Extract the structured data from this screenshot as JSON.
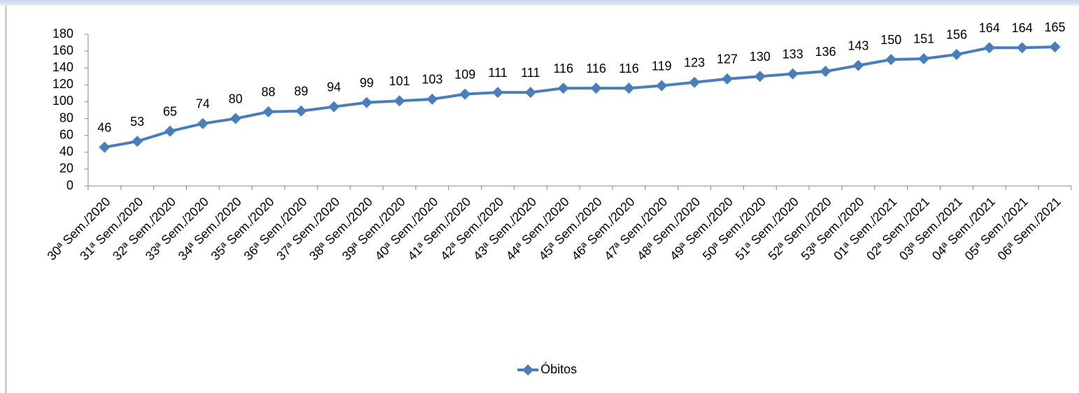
{
  "chart_data": {
    "type": "line",
    "categories": [
      "30ª Sem./2020",
      "31ª Sem./2020",
      "32ª Sem./2020",
      "33ª Sem./2020",
      "34ª Sem./2020",
      "35ª Sem./2020",
      "36ª Sem./2020",
      "37ª Sem./2020",
      "38ª Sem./2020",
      "39ª Sem./2020",
      "40ª Sem./2020",
      "41ª Sem./2020",
      "42ª Sem./2020",
      "43ª Sem./2020",
      "44ª Sem./2020",
      "45ª Sem./2020",
      "46ª Sem./2020",
      "47ª Sem./2020",
      "48ª Sem./2020",
      "49ª Sem./2020",
      "50ª Sem./2020",
      "51ª Sem./2020",
      "52ª Sem./2020",
      "53ª Sem./2020",
      "01ª Sem./2021",
      "02ª Sem./2021",
      "03ª Sem./2021",
      "04ª Sem./2021",
      "05ª Sem./2021",
      "06ª Sem./2021"
    ],
    "series": [
      {
        "name": "Óbitos",
        "color": "#4a7ebb",
        "values": [
          46,
          53,
          65,
          74,
          80,
          88,
          89,
          94,
          99,
          101,
          103,
          109,
          111,
          111,
          116,
          116,
          116,
          119,
          123,
          127,
          130,
          133,
          136,
          143,
          150,
          151,
          156,
          164,
          164,
          165
        ]
      }
    ],
    "ylim": [
      0,
      180
    ],
    "yticks": [
      0,
      20,
      40,
      60,
      80,
      100,
      120,
      140,
      160,
      180
    ],
    "legend": "bottom",
    "grid": false
  }
}
